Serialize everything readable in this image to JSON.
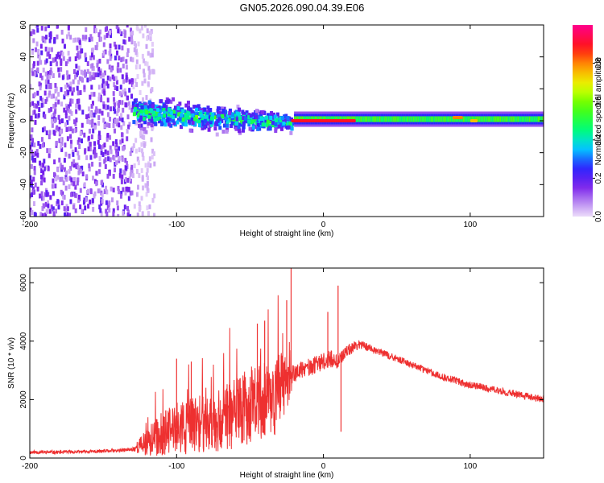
{
  "title": "GN05.2026.090.04.39.E06",
  "chart_data": [
    {
      "type": "heatmap",
      "xlabel": "Height of straight line (km)",
      "ylabel": "Frequency (Hz)",
      "xlim": [
        -200,
        150
      ],
      "ylim": [
        -60,
        60
      ],
      "xticks": [
        -200,
        -100,
        0,
        100
      ],
      "yticks": [
        -60,
        -40,
        -20,
        0,
        20,
        40,
        60
      ],
      "grid": false,
      "colorbar": {
        "label": "Normalized spectral amplitude",
        "range": [
          0,
          1
        ],
        "ticks": [
          "0.0",
          "0.2",
          "0.4",
          "0.6",
          "0.8"
        ],
        "tick_values": [
          0.0,
          0.2,
          0.4,
          0.6,
          0.8
        ],
        "colormap": "rainbow: white-lavender, violet, blue, cyan, green, yellow, orange, red, magenta"
      },
      "regions": [
        {
          "x_range": [
            -200,
            -130
          ],
          "freq_range": [
            -60,
            60
          ],
          "amplitude": 0.12,
          "pattern": "noise"
        },
        {
          "x_range": [
            -130,
            -115
          ],
          "freq_range": [
            -60,
            60
          ],
          "amplitude": 0.03,
          "pattern": "sparse noise"
        },
        {
          "x_range": [
            -130,
            -20
          ],
          "freq_center": 5,
          "freq_halfwidth": 10,
          "amplitude": 0.4,
          "pattern": "scattered blobs"
        },
        {
          "x_range": [
            -20,
            150
          ],
          "freq_center": 1,
          "freq_halfwidth": 3,
          "amplitude": 0.55,
          "pattern": "narrow band"
        }
      ],
      "peak_segments": [
        {
          "x_range": [
            -22,
            22
          ],
          "freq": 0,
          "amplitude": 0.9
        },
        {
          "x_range": [
            88,
            95
          ],
          "freq": 2,
          "amplitude": 0.8
        },
        {
          "x_range": [
            100,
            105
          ],
          "freq": 0,
          "amplitude": 0.75
        }
      ]
    },
    {
      "type": "line",
      "xlabel": "Height of straight line (km)",
      "ylabel": "SNR (10 * v/v)",
      "xlim": [
        -200,
        150
      ],
      "ylim": [
        0,
        6500
      ],
      "xticks": [
        -200,
        -100,
        0,
        100
      ],
      "yticks": [
        0,
        2000,
        4000,
        6000
      ],
      "grid": false,
      "series": [
        {
          "color": "#ee3030",
          "x": [
            -200,
            -180,
            -160,
            -140,
            -130,
            -120,
            -110,
            -100,
            -90,
            -80,
            -70,
            -60,
            -50,
            -40,
            -30,
            -25,
            -20,
            -15,
            -10,
            -5,
            0,
            5,
            10,
            15,
            20,
            25,
            30,
            40,
            50,
            60,
            70,
            80,
            90,
            100,
            110,
            120,
            130,
            140,
            150
          ],
          "values": [
            200,
            200,
            220,
            250,
            300,
            550,
            800,
            1000,
            1100,
            1200,
            1300,
            1500,
            1800,
            2000,
            2200,
            2500,
            2900,
            3000,
            3100,
            3200,
            3300,
            3400,
            3300,
            3600,
            3800,
            3900,
            3800,
            3600,
            3400,
            3200,
            3000,
            2800,
            2650,
            2500,
            2400,
            2300,
            2200,
            2100,
            2000
          ],
          "noise": [
            60,
            60,
            60,
            60,
            70,
            500,
            800,
            900,
            950,
            1000,
            1100,
            1200,
            1300,
            1400,
            1500,
            900,
            300,
            300,
            300,
            300,
            300,
            300,
            250,
            200,
            200,
            150,
            150,
            120,
            120,
            120,
            120,
            120,
            120,
            120,
            120,
            120,
            120,
            120,
            120
          ]
        }
      ],
      "spikes": [
        {
          "x": -22,
          "y": 6500
        },
        {
          "x": -25,
          "y": 5400
        },
        {
          "x": -40,
          "y": 4700
        },
        {
          "x": -45,
          "y": 4600
        },
        {
          "x": -100,
          "y": 3400
        },
        {
          "x": -90,
          "y": 3300
        },
        {
          "x": 10,
          "y": 5900
        },
        {
          "x": 3,
          "y": 5000
        },
        {
          "x": 12,
          "y": 900
        }
      ]
    }
  ]
}
